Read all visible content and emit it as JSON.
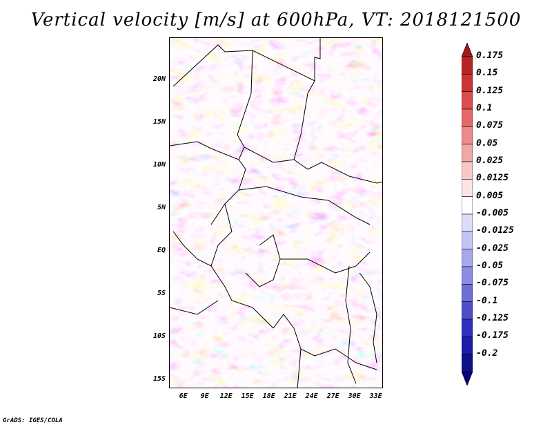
{
  "title": "Vertical velocity [m/s] at 600hPa, VT: 2018121500",
  "footer": "GrADS: IGES/COLA",
  "map": {
    "lat_ticks": [
      "20N",
      "15N",
      "10N",
      "5N",
      "EQ",
      "5S",
      "10S",
      "15S"
    ],
    "lat_values": [
      20,
      15,
      10,
      5,
      0,
      -5,
      -10,
      -15
    ],
    "lon_ticks": [
      "6E",
      "9E",
      "12E",
      "15E",
      "18E",
      "21E",
      "24E",
      "27E",
      "30E",
      "33E"
    ],
    "lon_values": [
      6,
      9,
      12,
      15,
      18,
      21,
      24,
      27,
      30,
      33
    ],
    "lon_range": [
      4,
      34
    ],
    "lat_range": [
      -16,
      25
    ]
  },
  "colorbar": {
    "labels": [
      "0.175",
      "0.15",
      "0.125",
      "0.1",
      "0.075",
      "0.05",
      "0.025",
      "0.0125",
      "0.005",
      "-0.005",
      "-0.0125",
      "-0.025",
      "-0.05",
      "-0.075",
      "-0.1",
      "-0.125",
      "-0.175",
      "-0.2"
    ],
    "colors": [
      "#a01818",
      "#b82424",
      "#cc3434",
      "#dc4c4c",
      "#e46a6a",
      "#ec8a8a",
      "#f2a6a6",
      "#f8c8c8",
      "#fce4e4",
      "#ffffff",
      "#dcdcf8",
      "#c4c4f4",
      "#a8a8ec",
      "#8c8ce4",
      "#6e6ed8",
      "#4e4ecc",
      "#3030bc",
      "#1c1ca8",
      "#10108c",
      "#080070"
    ]
  }
}
